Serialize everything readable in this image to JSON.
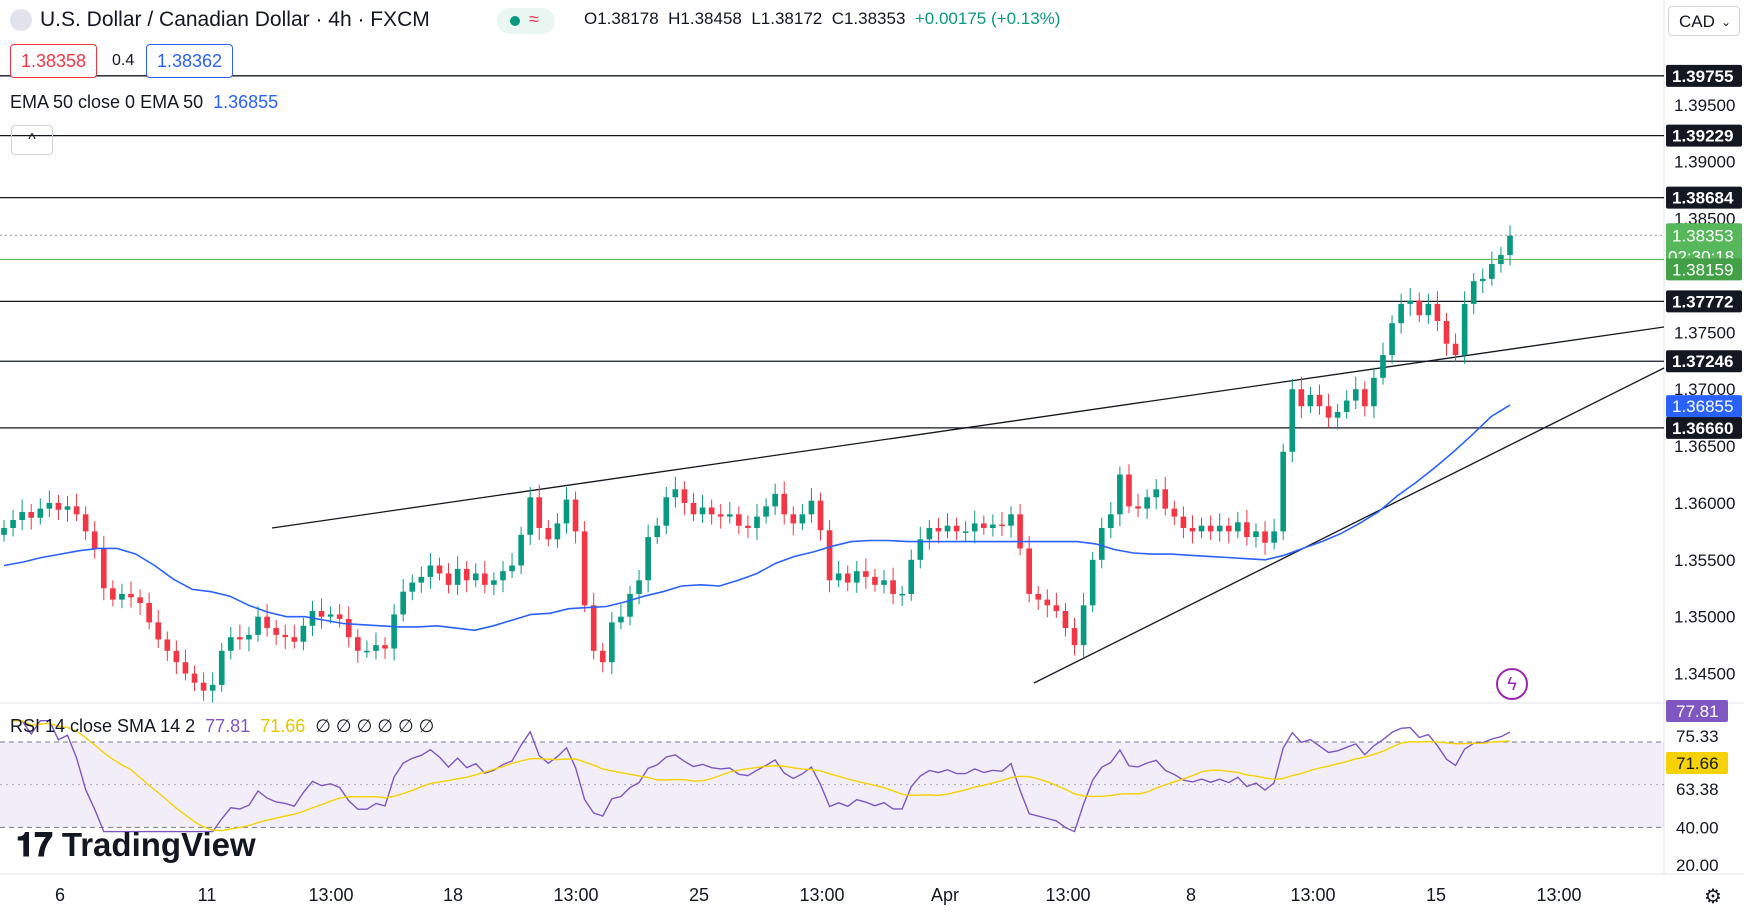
{
  "header": {
    "title": "U.S. Dollar / Canadian Dollar · 4h · FXCM",
    "open": "O1.38178",
    "high": "H1.38458",
    "low": "L1.38172",
    "close": "C1.38353",
    "change": "+0.00175 (+0.13%)",
    "sell_price": "1.38358",
    "spread": "0.4",
    "buy_price": "1.38362",
    "indicator_label": "EMA 50 close 0 EMA 50",
    "indicator_value": "1.36855",
    "collapse_icon": "chevron-up-icon",
    "currency": "CAD"
  },
  "rsi_header": {
    "label": "RSI 14 close SMA 14 2",
    "rsi_value": "77.81",
    "sma_value": "71.66",
    "extra": "∅ ∅ ∅ ∅ ∅ ∅"
  },
  "brand": "TradingView",
  "colors": {
    "up": "#089981",
    "down": "#f23645",
    "ema": "#2962ff",
    "rsi": "#7e57c2",
    "rsi_sma": "#f5d200",
    "current_price": "#4caf50"
  },
  "chart_data": {
    "type": "candlestick",
    "x_tick_labels": [
      "6",
      "11",
      "13:00",
      "18",
      "13:00",
      "25",
      "13:00",
      "Apr",
      "13:00",
      "8",
      "13:00",
      "15",
      "13:00"
    ],
    "y_tick_labels": [
      "1.39500",
      "1.39000",
      "1.38500",
      "1.37500",
      "1.37000",
      "1.36500",
      "1.36000",
      "1.35500",
      "1.35000",
      "1.34500"
    ],
    "ylim": [
      1.3425,
      1.4007
    ],
    "price_levels": [
      "1.39755",
      "1.39229",
      "1.38684",
      "1.37772",
      "1.37246",
      "1.36660"
    ],
    "current_price": "1.38353",
    "countdown": "02:30:18",
    "bid_level": "1.38159",
    "ema_label": "1.36855",
    "ema_value": 1.3686,
    "closes": [
      1.3578,
      1.3585,
      1.3592,
      1.3587,
      1.3595,
      1.36,
      1.3594,
      1.3597,
      1.359,
      1.3575,
      1.356,
      1.3525,
      1.3515,
      1.352,
      1.3517,
      1.3512,
      1.3495,
      1.348,
      1.347,
      1.346,
      1.345,
      1.3442,
      1.3435,
      1.344,
      1.347,
      1.3482,
      1.348,
      1.3484,
      1.35,
      1.349,
      1.3484,
      1.3482,
      1.3478,
      1.3492,
      1.3505,
      1.35,
      1.3502,
      1.3498,
      1.3482,
      1.347,
      1.347,
      1.3475,
      1.3472,
      1.3502,
      1.3522,
      1.353,
      1.3535,
      1.3545,
      1.3538,
      1.3528,
      1.3542,
      1.3532,
      1.3538,
      1.3528,
      1.3532,
      1.354,
      1.3545,
      1.3572,
      1.3605,
      1.3578,
      1.3568,
      1.3582,
      1.3603,
      1.3575,
      1.351,
      1.347,
      1.346,
      1.3495,
      1.35,
      1.352,
      1.3532,
      1.357,
      1.358,
      1.3605,
      1.3612,
      1.36,
      1.359,
      1.3596,
      1.359,
      1.3588,
      1.359,
      1.358,
      1.3578,
      1.3588,
      1.3597,
      1.3608,
      1.359,
      1.3582,
      1.359,
      1.3602,
      1.3576,
      1.3532,
      1.3538,
      1.353,
      1.354,
      1.3535,
      1.3528,
      1.3532,
      1.352,
      1.352,
      1.355,
      1.3568,
      1.3578,
      1.3575,
      1.358,
      1.3575,
      1.3575,
      1.3582,
      1.3578,
      1.3581,
      1.358,
      1.359,
      1.356,
      1.352,
      1.3515,
      1.351,
      1.3505,
      1.349,
      1.3475,
      1.351,
      1.355,
      1.3578,
      1.359,
      1.3625,
      1.3597,
      1.3595,
      1.3605,
      1.3612,
      1.3595,
      1.3588,
      1.3578,
      1.3575,
      1.358,
      1.3575,
      1.358,
      1.3575,
      1.3583,
      1.357,
      1.3575,
      1.3565,
      1.3575,
      1.3645,
      1.37,
      1.3685,
      1.3695,
      1.3685,
      1.3675,
      1.368,
      1.369,
      1.37,
      1.3685,
      1.371,
      1.373,
      1.3758,
      1.3775,
      1.3778,
      1.3765,
      1.3775,
      1.376,
      1.374,
      1.373,
      1.3775,
      1.3795,
      1.3797,
      1.381,
      1.3818,
      1.3835
    ],
    "ema": [
      1.3545,
      1.3548,
      1.3552,
      1.3555,
      1.3558,
      1.356,
      1.356,
      1.3555,
      1.3545,
      1.3533,
      1.3524,
      1.3522,
      1.3518,
      1.351,
      1.3504,
      1.35,
      1.35,
      1.3497,
      1.3494,
      1.3493,
      1.3492,
      1.3491,
      1.3491,
      1.3492,
      1.349,
      1.3488,
      1.3492,
      1.3497,
      1.3502,
      1.3503,
      1.3507,
      1.3508,
      1.3509,
      1.3513,
      1.3518,
      1.3522,
      1.3527,
      1.3528,
      1.3527,
      1.3532,
      1.3538,
      1.3547,
      1.3553,
      1.3557,
      1.3562,
      1.3566,
      1.3567,
      1.3567,
      1.3566,
      1.3566,
      1.3566,
      1.3566,
      1.3566,
      1.3566,
      1.3566,
      1.3566,
      1.3566,
      1.3566,
      1.3564,
      1.3559,
      1.3556,
      1.3555,
      1.3555,
      1.3554,
      1.3553,
      1.3552,
      1.3551,
      1.355,
      1.3554,
      1.356,
      1.3566,
      1.3573,
      1.3582,
      1.3592,
      1.3606,
      1.3618,
      1.3631,
      1.3645,
      1.366,
      1.3676,
      1.3686
    ]
  }
}
